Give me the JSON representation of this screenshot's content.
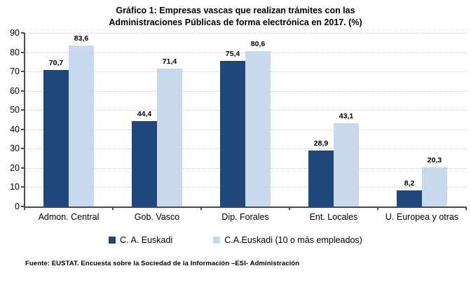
{
  "chart": {
    "title_line1": "Gráfico 1: Empresas vascas que realizan trámites con las",
    "title_line2": "Administraciones Públicas de forma electrónica en 2017. (%)",
    "source": "Fuente: EUSTAT. Encuesta sobre la Sociedad de la Información –ESI- Administración"
  },
  "chart_data": {
    "type": "bar",
    "title": "Gráfico 1: Empresas vascas que realizan trámites con las Administraciones Públicas de forma electrónica en 2017. (%)",
    "categories": [
      "Admon. Central",
      "Gob. Vasco",
      "Dip. Forales",
      "Ent. Locales",
      "U. Europea y otras"
    ],
    "series": [
      {
        "name": "C. A. Euskadi",
        "color": "#1f477a",
        "values": [
          70.7,
          44.4,
          75.4,
          28.9,
          8.2
        ],
        "labels": [
          "70,7",
          "44,4",
          "75,4",
          "28,9",
          "8,2"
        ]
      },
      {
        "name": "C.A.Euskadi (10 o más empleados)",
        "color": "#c8d9ee",
        "values": [
          83.6,
          71.4,
          80.6,
          43.1,
          20.3
        ],
        "labels": [
          "83,6",
          "71,4",
          "80,6",
          "43,1",
          "20,3"
        ]
      }
    ],
    "xlabel": "",
    "ylabel": "",
    "ylim": [
      0,
      90
    ],
    "yticks": [
      0,
      10,
      20,
      30,
      40,
      50,
      60,
      70,
      80,
      90
    ],
    "grid": "horizontal-dotted",
    "legend_position": "bottom",
    "value_decimal_separator": ","
  }
}
